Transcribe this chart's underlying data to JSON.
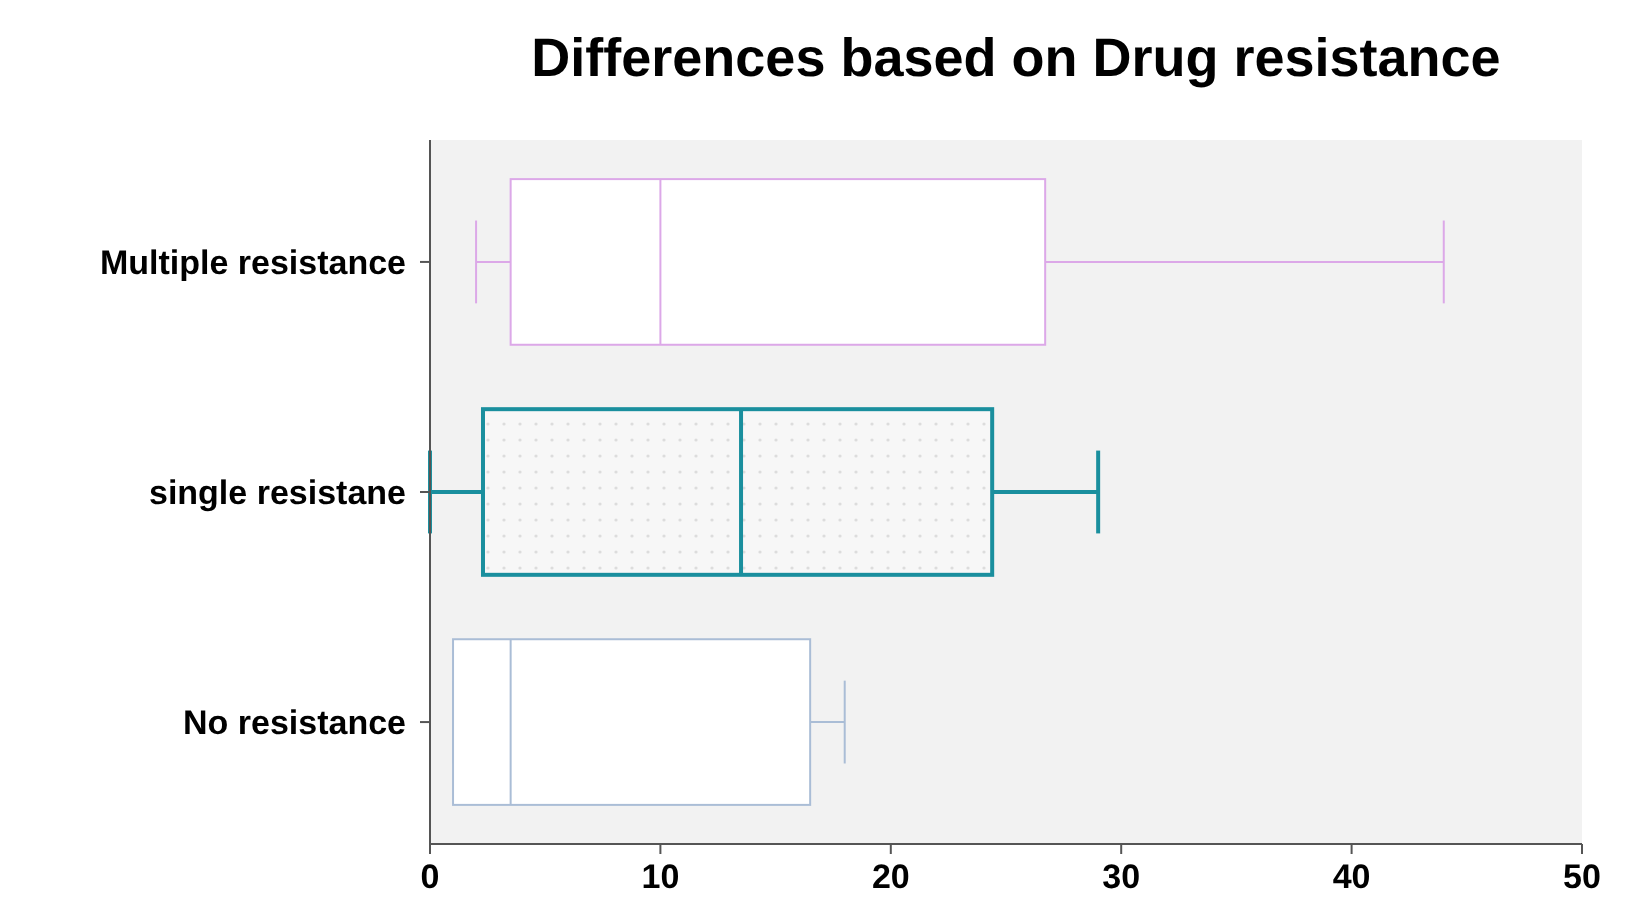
{
  "chart_data": {
    "type": "box",
    "title": "Differences based on Drug resistance",
    "orientation": "horizontal",
    "categories": [
      "Multiple resistance",
      "single resistane",
      "No resistance"
    ],
    "boxes": [
      {
        "low": 2,
        "q1": 3.5,
        "median": 10,
        "q3": 26.7,
        "high": 44
      },
      {
        "low": 0,
        "q1": 2.3,
        "median": 13.5,
        "q3": 24.4,
        "high": 29
      },
      {
        "low": 1,
        "q1": 1,
        "median": 3.5,
        "q3": 16.5,
        "high": 18
      }
    ],
    "colors": [
      "#dca8e8",
      "#1a8f9e",
      "#aabdd6"
    ],
    "xlim": [
      0,
      50
    ],
    "xticks": [
      0,
      10,
      20,
      30,
      40,
      50
    ],
    "grid": false
  }
}
